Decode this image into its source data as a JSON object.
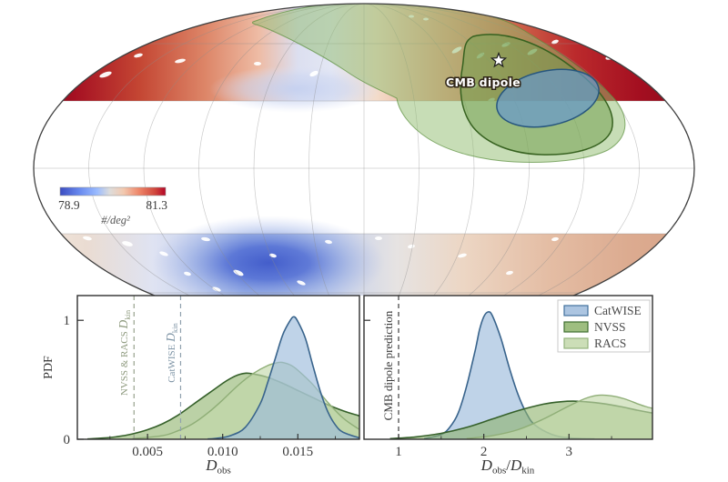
{
  "map": {
    "cmb_label": "CMB dipole",
    "colorbar": {
      "min_label": "78.9",
      "max_label": "81.3",
      "units_label": "#/deg²",
      "min_color": "#3b4cc0",
      "max_color": "#b40426"
    },
    "contour_colors": {
      "catwise_ellipse": "#6699cc",
      "nvss_inner": "#74a152",
      "racs_outer": "#8fbc6e"
    }
  },
  "chart_data": [
    {
      "type": "area",
      "id": "dobs",
      "title": "",
      "xlabel": "D_obs",
      "xlabel_parts": {
        "main": "D",
        "sub": "obs"
      },
      "ylabel": "PDF",
      "xlim": [
        0.00033,
        0.0191
      ],
      "ylim": [
        0,
        1.208
      ],
      "grid": false,
      "xticks": [
        {
          "v": 0.005,
          "l": "0.005"
        },
        {
          "v": 0.01,
          "l": "0.010"
        },
        {
          "v": 0.015,
          "l": "0.015"
        }
      ],
      "xminor": [
        0.0025,
        0.0075,
        0.0125,
        0.0175
      ],
      "yticks": [
        {
          "v": 0,
          "l": "0"
        },
        {
          "v": 1,
          "l": "1"
        }
      ],
      "vlines": [
        {
          "value": 0.0041,
          "label": "NVSS & RACS D_kin",
          "parts": {
            "prefix": "NVSS & RACS ",
            "main": "D",
            "sub": "kin"
          },
          "line_color": "#97a18c",
          "text_color": "#8e9a7e"
        },
        {
          "value": 0.0072,
          "label": "CatWISE D_kin",
          "parts": {
            "prefix": "CatWISE ",
            "main": "D",
            "sub": "kin"
          },
          "line_color": "#8fa0ad",
          "text_color": "#7f95a6"
        }
      ],
      "series": [
        {
          "name": "NVSS",
          "fill": "#8db36a",
          "fill_opacity": 0.6,
          "stroke": "#35602a",
          "stroke_width": 1.6,
          "points": [
            [
              0.001,
              0.002
            ],
            [
              0.002,
              0.01
            ],
            [
              0.003,
              0.022
            ],
            [
              0.004,
              0.045
            ],
            [
              0.005,
              0.08
            ],
            [
              0.006,
              0.13
            ],
            [
              0.007,
              0.2
            ],
            [
              0.008,
              0.29
            ],
            [
              0.009,
              0.38
            ],
            [
              0.01,
              0.47
            ],
            [
              0.0105,
              0.51
            ],
            [
              0.011,
              0.54
            ],
            [
              0.0115,
              0.555
            ],
            [
              0.012,
              0.55
            ],
            [
              0.013,
              0.52
            ],
            [
              0.014,
              0.47
            ],
            [
              0.015,
              0.41
            ],
            [
              0.016,
              0.35
            ],
            [
              0.017,
              0.29
            ],
            [
              0.018,
              0.24
            ],
            [
              0.019,
              0.2
            ],
            [
              0.0191,
              0.195
            ]
          ]
        },
        {
          "name": "RACS",
          "fill": "#c3d8aa",
          "fill_opacity": 0.65,
          "stroke": "#8fae77",
          "stroke_width": 1.4,
          "points": [
            [
              0.004,
              0.005
            ],
            [
              0.006,
              0.03
            ],
            [
              0.007,
              0.07
            ],
            [
              0.008,
              0.13
            ],
            [
              0.009,
              0.22
            ],
            [
              0.01,
              0.33
            ],
            [
              0.011,
              0.45
            ],
            [
              0.012,
              0.55
            ],
            [
              0.013,
              0.62
            ],
            [
              0.0137,
              0.645
            ],
            [
              0.014,
              0.645
            ],
            [
              0.0145,
              0.625
            ],
            [
              0.015,
              0.58
            ],
            [
              0.016,
              0.46
            ],
            [
              0.017,
              0.31
            ],
            [
              0.018,
              0.18
            ],
            [
              0.019,
              0.09
            ],
            [
              0.0191,
              0.085
            ]
          ]
        },
        {
          "name": "CatWISE",
          "fill": "#9dbbdc",
          "fill_opacity": 0.65,
          "stroke": "#39648c",
          "stroke_width": 1.6,
          "points": [
            [
              0.009,
              0.002
            ],
            [
              0.0095,
              0.006
            ],
            [
              0.0105,
              0.03
            ],
            [
              0.0115,
              0.1
            ],
            [
              0.0125,
              0.3
            ],
            [
              0.013,
              0.48
            ],
            [
              0.0135,
              0.68
            ],
            [
              0.014,
              0.88
            ],
            [
              0.0145,
              1.0
            ],
            [
              0.01475,
              1.03
            ],
            [
              0.015,
              0.99
            ],
            [
              0.0155,
              0.85
            ],
            [
              0.016,
              0.62
            ],
            [
              0.0165,
              0.4
            ],
            [
              0.017,
              0.23
            ],
            [
              0.0175,
              0.12
            ],
            [
              0.018,
              0.06
            ],
            [
              0.019,
              0.015
            ],
            [
              0.0191,
              0.013
            ]
          ]
        }
      ]
    },
    {
      "type": "area",
      "id": "ratio",
      "title": "",
      "xlabel": "D_obs/D_kin",
      "xlabel_parts": {
        "m1": "D",
        "s1": "obs",
        "sep": "/",
        "m2": "D",
        "s2": "kin"
      },
      "ylabel": "",
      "xlim": [
        0.594,
        3.98
      ],
      "ylim": [
        0,
        1.208
      ],
      "grid": false,
      "xticks": [
        {
          "v": 1,
          "l": "1"
        },
        {
          "v": 2,
          "l": "2"
        },
        {
          "v": 3,
          "l": "3"
        }
      ],
      "xminor": [
        1.5,
        2.5,
        3.5
      ],
      "yticks": [
        {
          "v": 1,
          "l": ""
        }
      ],
      "vlines": [
        {
          "value": 1.0,
          "label": "CMB dipole prediction",
          "line_color": "#3b3b3b",
          "text_color": "#3b3b3b"
        }
      ],
      "legend": {
        "position": "top-right",
        "entries": [
          {
            "label": "CatWISE",
            "fill": "#9dbbdc",
            "stroke": "#41709c"
          },
          {
            "label": "NVSS",
            "fill": "#8db36a",
            "stroke": "#3f6d30"
          },
          {
            "label": "RACS",
            "fill": "#c3d8aa",
            "stroke": "#94b37c"
          }
        ]
      },
      "series": [
        {
          "name": "CatWISE",
          "fill": "#9dbbdc",
          "fill_opacity": 0.65,
          "stroke": "#39648c",
          "stroke_width": 1.6,
          "points": [
            [
              1.3,
              0.005
            ],
            [
              1.5,
              0.04
            ],
            [
              1.6,
              0.1
            ],
            [
              1.7,
              0.22
            ],
            [
              1.8,
              0.45
            ],
            [
              1.9,
              0.75
            ],
            [
              1.95,
              0.92
            ],
            [
              2.0,
              1.03
            ],
            [
              2.05,
              1.07
            ],
            [
              2.1,
              1.04
            ],
            [
              2.2,
              0.85
            ],
            [
              2.3,
              0.6
            ],
            [
              2.4,
              0.38
            ],
            [
              2.5,
              0.22
            ],
            [
              2.6,
              0.12
            ],
            [
              2.8,
              0.04
            ],
            [
              3.0,
              0.012
            ],
            [
              3.3,
              0.003
            ]
          ]
        },
        {
          "name": "NVSS",
          "fill": "#8db36a",
          "fill_opacity": 0.6,
          "stroke": "#35602a",
          "stroke_width": 1.6,
          "points": [
            [
              0.9,
              0.005
            ],
            [
              1.2,
              0.02
            ],
            [
              1.5,
              0.05
            ],
            [
              1.8,
              0.1
            ],
            [
              2.1,
              0.17
            ],
            [
              2.4,
              0.24
            ],
            [
              2.7,
              0.295
            ],
            [
              2.9,
              0.315
            ],
            [
              3.05,
              0.32
            ],
            [
              3.2,
              0.315
            ],
            [
              3.4,
              0.3
            ],
            [
              3.6,
              0.275
            ],
            [
              3.8,
              0.245
            ],
            [
              3.98,
              0.22
            ]
          ]
        },
        {
          "name": "RACS",
          "fill": "#c3d8aa",
          "fill_opacity": 0.65,
          "stroke": "#8fae77",
          "stroke_width": 1.4,
          "points": [
            [
              1.8,
              0.005
            ],
            [
              2.1,
              0.03
            ],
            [
              2.4,
              0.08
            ],
            [
              2.7,
              0.17
            ],
            [
              3.0,
              0.28
            ],
            [
              3.2,
              0.345
            ],
            [
              3.35,
              0.37
            ],
            [
              3.5,
              0.365
            ],
            [
              3.65,
              0.34
            ],
            [
              3.8,
              0.3
            ],
            [
              3.9,
              0.275
            ],
            [
              3.98,
              0.26
            ]
          ]
        }
      ]
    }
  ]
}
